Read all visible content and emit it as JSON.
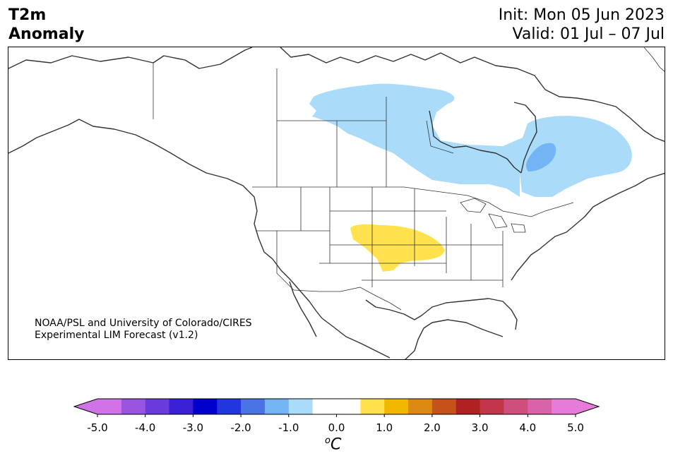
{
  "title": {
    "line1": "T2m",
    "line2": "Anomaly"
  },
  "dates": {
    "init": "Init: Mon 05 Jun 2023",
    "valid": "Valid: 01 Jul – 07 Jul"
  },
  "credit": {
    "line1": "NOAA/PSL and University of Colorado/CIRES",
    "line2": "Experimental LIM Forecast (v1.2)"
  },
  "map": {
    "region": "North America",
    "anomalies": [
      {
        "name": "central-canada-cool",
        "level": -1.0,
        "color": "#aadcfa"
      },
      {
        "name": "quebec-cool",
        "level": -1.0,
        "color": "#aadcfa"
      },
      {
        "name": "hudson-bay-cool-core",
        "level": -1.5,
        "color": "#73b4f5"
      },
      {
        "name": "central-plains-warm",
        "level": 1.0,
        "color": "#ffe24e"
      }
    ]
  },
  "colorbar": {
    "unit": "C",
    "unit_sup": "o",
    "tick_labels": [
      "-5.0",
      "-4.0",
      "-3.0",
      "-2.0",
      "-1.0",
      "0.0",
      "1.0",
      "2.0",
      "3.0",
      "4.0",
      "5.0"
    ],
    "bins": [
      {
        "from": -5.0,
        "to": -4.5,
        "color": "#d073e8"
      },
      {
        "from": -4.5,
        "to": -4.0,
        "color": "#9a55e0"
      },
      {
        "from": -4.0,
        "to": -3.5,
        "color": "#6a3bdc"
      },
      {
        "from": -3.5,
        "to": -3.0,
        "color": "#3a20d5"
      },
      {
        "from": -3.0,
        "to": -2.5,
        "color": "#0000cd"
      },
      {
        "from": -2.5,
        "to": -2.0,
        "color": "#2236dd"
      },
      {
        "from": -2.0,
        "to": -1.5,
        "color": "#4a74e6"
      },
      {
        "from": -1.5,
        "to": -1.0,
        "color": "#73b4f5"
      },
      {
        "from": -1.0,
        "to": -0.5,
        "color": "#aadcfa"
      },
      {
        "from": -0.5,
        "to": 0.0,
        "color": "#ffffff"
      },
      {
        "from": 0.0,
        "to": 0.5,
        "color": "#ffffff"
      },
      {
        "from": 0.5,
        "to": 1.0,
        "color": "#ffe24e"
      },
      {
        "from": 1.0,
        "to": 1.5,
        "color": "#f2b800"
      },
      {
        "from": 1.5,
        "to": 2.0,
        "color": "#dd8a13"
      },
      {
        "from": 2.0,
        "to": 2.5,
        "color": "#c55218"
      },
      {
        "from": 2.5,
        "to": 3.0,
        "color": "#b02222"
      },
      {
        "from": 3.0,
        "to": 3.5,
        "color": "#c2364b"
      },
      {
        "from": 3.5,
        "to": 4.0,
        "color": "#cf4f7c"
      },
      {
        "from": 4.0,
        "to": 4.5,
        "color": "#d962a8"
      },
      {
        "from": 4.5,
        "to": 5.0,
        "color": "#e77bd9"
      }
    ],
    "extend_low_color": "#d073e8",
    "extend_high_color": "#e77bd9"
  }
}
